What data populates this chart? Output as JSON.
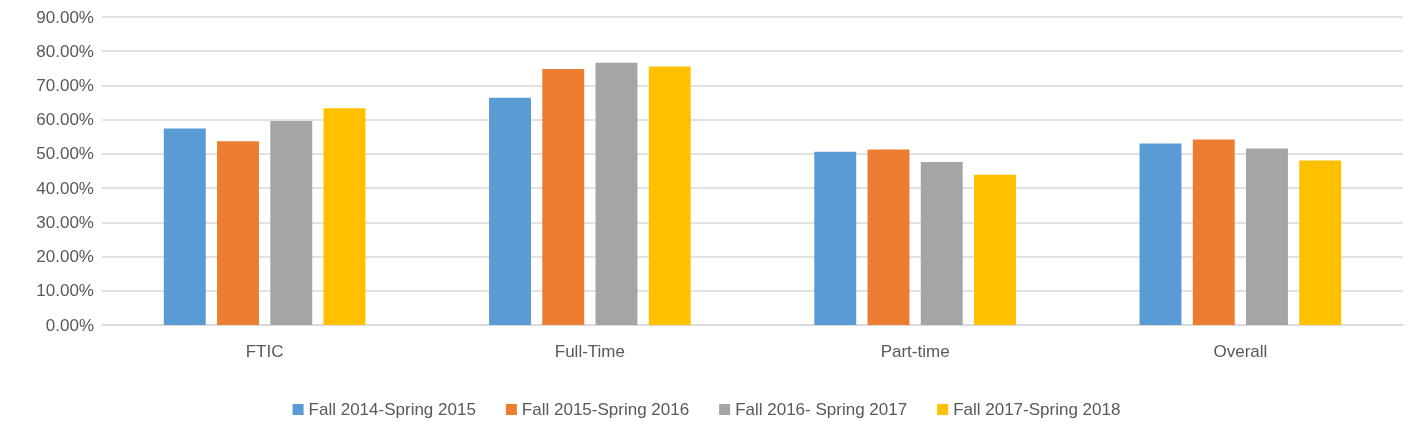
{
  "chart_data": {
    "type": "bar",
    "categories": [
      "FTIC",
      "Full-Time",
      "Part-time",
      "Overall"
    ],
    "series": [
      {
        "name": "Fall 2014-Spring 2015",
        "color": "#5b9bd5",
        "values": [
          57.4,
          66.4,
          50.6,
          53.0
        ]
      },
      {
        "name": "Fall 2015-Spring 2016",
        "color": "#ed7d31",
        "values": [
          53.7,
          74.8,
          51.3,
          54.2
        ]
      },
      {
        "name": "Fall 2016- Spring 2017",
        "color": "#a5a5a5",
        "values": [
          59.6,
          76.6,
          47.6,
          51.6
        ]
      },
      {
        "name": "Fall 2017-Spring 2018",
        "color": "#ffc000",
        "values": [
          63.3,
          75.5,
          43.9,
          48.1
        ]
      }
    ],
    "ylim": [
      0,
      90
    ],
    "yticks": [
      {
        "value": 0,
        "label": "0.00%"
      },
      {
        "value": 10,
        "label": "10.00%"
      },
      {
        "value": 20,
        "label": "20.00%"
      },
      {
        "value": 30,
        "label": "30.00%"
      },
      {
        "value": 40,
        "label": "40.00%"
      },
      {
        "value": 50,
        "label": "50.00%"
      },
      {
        "value": 60,
        "label": "60.00%"
      },
      {
        "value": 70,
        "label": "70.00%"
      },
      {
        "value": 80,
        "label": "80.00%"
      },
      {
        "value": 90,
        "label": "90.00%"
      }
    ],
    "grid": "y",
    "legend": "bottom"
  }
}
